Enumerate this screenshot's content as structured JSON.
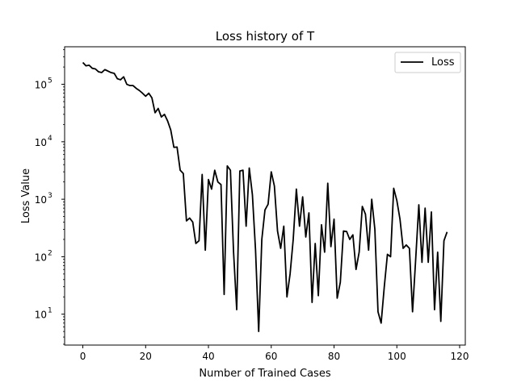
{
  "chart_data": {
    "type": "line",
    "title": "Loss history of T",
    "xlabel": "Number of Trained Cases",
    "ylabel": "Loss Value",
    "xlim": [
      -5.8,
      121.8
    ],
    "ylim": [
      2.9,
      450000
    ],
    "yscale": "log",
    "grid": false,
    "legend_position": "top-right",
    "x_ticks": [
      "0",
      "20",
      "40",
      "60",
      "80",
      "100",
      "120"
    ],
    "y_ticks": [
      "10",
      "10",
      "10",
      "10",
      "10"
    ],
    "y_tick_exponents": [
      "1",
      "2",
      "3",
      "4",
      "5"
    ],
    "line_color": "#000000",
    "series": [
      {
        "name": "Loss",
        "x": [
          0,
          1,
          2,
          3,
          4,
          5,
          6,
          7,
          8,
          9,
          10,
          11,
          12,
          13,
          14,
          15,
          16,
          17,
          18,
          19,
          20,
          21,
          22,
          23,
          24,
          25,
          26,
          27,
          28,
          29,
          30,
          31,
          32,
          33,
          34,
          35,
          36,
          37,
          38,
          39,
          40,
          41,
          42,
          43,
          44,
          45,
          46,
          47,
          48,
          49,
          50,
          51,
          52,
          53,
          54,
          55,
          56,
          57,
          58,
          59,
          60,
          61,
          62,
          63,
          64,
          65,
          66,
          67,
          68,
          69,
          70,
          71,
          72,
          73,
          74,
          75,
          76,
          77,
          78,
          79,
          80,
          81,
          82,
          83,
          84,
          85,
          86,
          87,
          88,
          89,
          90,
          91,
          92,
          93,
          94,
          95,
          96,
          97,
          98,
          99,
          100,
          101,
          102,
          103,
          104,
          105,
          106,
          107,
          108,
          109,
          110,
          111,
          112,
          113,
          114,
          115,
          116
        ],
        "values": [
          240000,
          210000,
          215000,
          190000,
          185000,
          165000,
          160000,
          180000,
          170000,
          160000,
          155000,
          125000,
          120000,
          135000,
          100000,
          95000,
          95000,
          85000,
          78000,
          70000,
          62000,
          70000,
          58000,
          32000,
          38000,
          27000,
          30000,
          23000,
          16000,
          8000,
          8100,
          3200,
          2800,
          420,
          470,
          400,
          170,
          190,
          2700,
          130,
          2200,
          1500,
          3200,
          2000,
          1800,
          22,
          3800,
          3200,
          120,
          12,
          3100,
          3200,
          340,
          3500,
          1200,
          130,
          5,
          200,
          650,
          820,
          3000,
          1700,
          280,
          140,
          340,
          20,
          50,
          200,
          1500,
          340,
          1100,
          220,
          580,
          16,
          170,
          21,
          360,
          120,
          1900,
          150,
          450,
          19,
          36,
          280,
          275,
          200,
          240,
          60,
          120,
          750,
          550,
          130,
          1000,
          300,
          11,
          7,
          30,
          110,
          100,
          1550,
          950,
          450,
          140,
          160,
          140,
          11,
          90,
          800,
          80,
          700,
          80,
          600,
          12,
          120,
          7.5,
          190,
          270
        ]
      }
    ]
  }
}
